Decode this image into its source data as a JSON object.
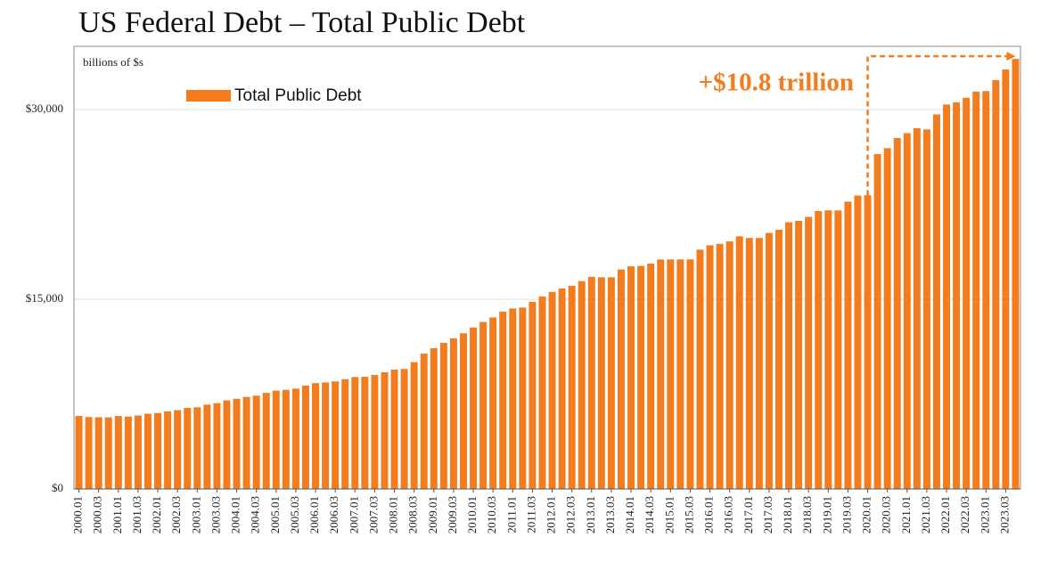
{
  "chart_data": {
    "type": "bar",
    "title": "US Federal Debt – Total Public Debt",
    "y_label": "billions of $s",
    "annotation": "+$10.8 trillion",
    "categories": [
      "2000.01",
      null,
      "2000.03",
      null,
      "2001.01",
      null,
      "2001.03",
      null,
      "2002.01",
      null,
      "2002.03",
      null,
      "2003.01",
      null,
      "2003.03",
      null,
      "2004.01",
      null,
      "2004.03",
      null,
      "2005.01",
      null,
      "2005.03",
      null,
      "2006.01",
      null,
      "2006.03",
      null,
      "2007.01",
      null,
      "2007.03",
      null,
      "2008.01",
      null,
      "2008.03",
      null,
      "2009.01",
      null,
      "2009.03",
      null,
      "2010.01",
      null,
      "2010.03",
      null,
      "2011.01",
      null,
      "2011.03",
      null,
      "2012.01",
      null,
      "2012.03",
      null,
      "2013.01",
      null,
      "2013.03",
      null,
      "2014.01",
      null,
      "2014.03",
      null,
      "2015.01",
      null,
      "2015.03",
      null,
      "2016.01",
      null,
      "2016.03",
      null,
      "2017.01",
      null,
      "2017.03",
      null,
      "2018.01",
      null,
      "2018.03",
      null,
      "2019.01",
      null,
      "2019.03",
      null,
      "2020.01",
      null,
      "2020.03",
      null,
      "2021.01",
      null,
      "2021.03",
      null,
      "2022.01",
      null,
      "2022.03",
      null,
      "2023.01",
      null,
      "2023.03",
      null
    ],
    "series": [
      {
        "name": "Total Public Debt",
        "color": "#f27c1e",
        "values": [
          5773,
          5686,
          5674,
          5662,
          5774,
          5727,
          5807,
          5943,
          6006,
          6126,
          6228,
          6405,
          6460,
          6670,
          6783,
          7001,
          7131,
          7274,
          7379,
          7596,
          7777,
          7836,
          7933,
          8170,
          8371,
          8420,
          8507,
          8680,
          8849,
          8867,
          9008,
          9229,
          9437,
          9492,
          10025,
          10700,
          11127,
          11545,
          11910,
          12311,
          12773,
          13202,
          13562,
          14025,
          14270,
          14343,
          14790,
          15223,
          15582,
          15856,
          16066,
          16433,
          16771,
          16738,
          16738,
          17352,
          17601,
          17633,
          17824,
          18141,
          18152,
          18152,
          18151,
          18922,
          19264,
          19381,
          19573,
          19976,
          19846,
          19845,
          20245,
          20493,
          21089,
          21195,
          21516,
          21974,
          22028,
          22023,
          22719,
          23201,
          23226,
          26477,
          26945,
          27748,
          28133,
          28529,
          28429,
          29617,
          30400,
          30568,
          30929,
          31420,
          31458,
          32332,
          33167,
          34001
        ]
      }
    ],
    "ylim": [
      0,
      35000
    ],
    "yticks": [
      {
        "value": 0,
        "label": "$0"
      },
      {
        "value": 15000,
        "label": "$15,000"
      },
      {
        "value": 30000,
        "label": "$30,000"
      }
    ],
    "grid": true
  }
}
